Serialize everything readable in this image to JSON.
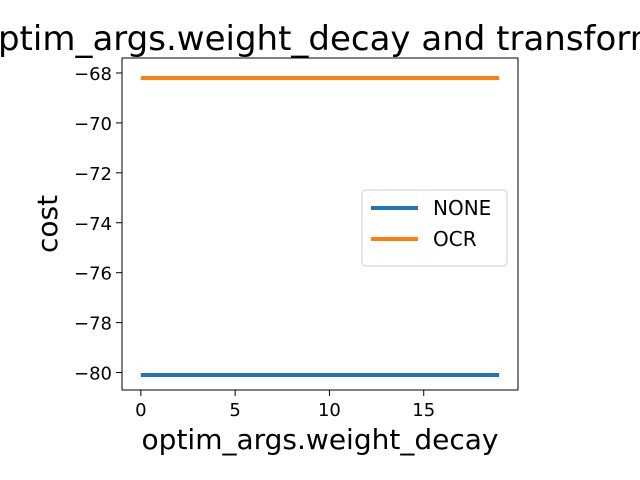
{
  "chart_data": {
    "type": "line",
    "title": "optim_args.weight_decay and transform",
    "xlabel": "optim_args.weight_decay",
    "ylabel": "cost",
    "xlim": [
      -1,
      20
    ],
    "ylim": [
      -80.7,
      -67.4
    ],
    "xticks": [
      0,
      5,
      10,
      15
    ],
    "xtick_labels": [
      "0",
      "5",
      "10",
      "15"
    ],
    "yticks": [
      -80,
      -78,
      -76,
      -74,
      -72,
      -70,
      -68
    ],
    "ytick_labels": [
      "−80",
      "−78",
      "−76",
      "−74",
      "−72",
      "−70",
      "−68"
    ],
    "grid": false,
    "legend_position": "center-right",
    "series": [
      {
        "name": "NONE",
        "color": "#1f77b4",
        "x": [
          0,
          19
        ],
        "y": [
          -80.1,
          -80.1
        ]
      },
      {
        "name": "OCR",
        "color": "#ff7f0e",
        "x": [
          0,
          19
        ],
        "y": [
          -68.2,
          -68.2
        ]
      }
    ]
  }
}
